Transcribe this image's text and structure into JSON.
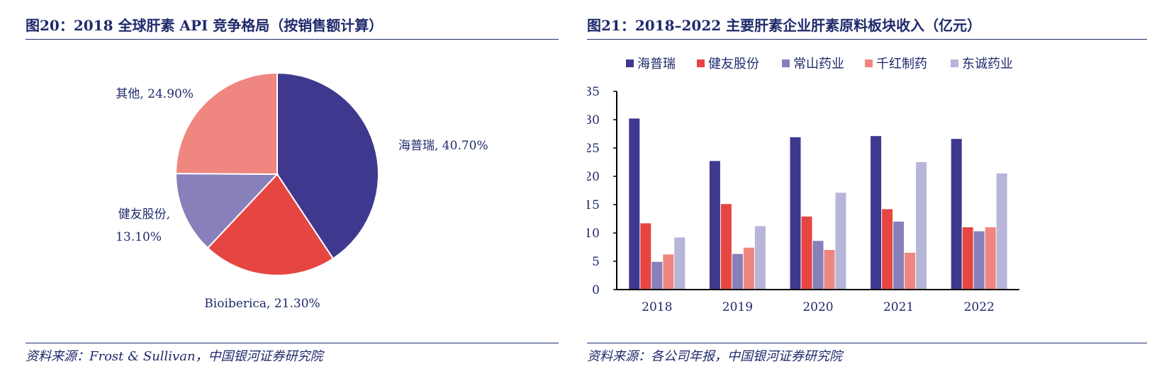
{
  "left": {
    "title": "图20：2018 全球肝素 API 竞争格局（按销售额计算）",
    "source": "资料来源：Frost & Sullivan，中国银河证券研究院"
  },
  "right": {
    "title": "图21：2018–2022 主要肝素企业肝素原料板块收入（亿元）",
    "source": "资料来源：各公司年报，中国银河证券研究院"
  },
  "chart_data": [
    {
      "type": "pie",
      "title": "2018 全球肝素 API 竞争格局（按销售额计算）",
      "slices": [
        {
          "name": "海普瑞",
          "value": 40.7,
          "label": "海普瑞, 40.70%",
          "color": "#3f388f"
        },
        {
          "name": "Bioiberica",
          "value": 21.3,
          "label": "Bioiberica, 21.30%",
          "color": "#e64641"
        },
        {
          "name": "健友股份",
          "value": 13.1,
          "label_line1": "健友股份,",
          "label_line2": "13.10%",
          "color": "#8780ba"
        },
        {
          "name": "其他",
          "value": 24.9,
          "label": "其他, 24.90%",
          "color": "#ef8680"
        }
      ]
    },
    {
      "type": "bar",
      "title": "2018–2022 主要肝素企业肝素原料板块收入（亿元）",
      "categories": [
        "2018",
        "2019",
        "2020",
        "2021",
        "2022"
      ],
      "ylim": [
        0,
        35
      ],
      "yticks": [
        "0",
        "5",
        "10",
        "15",
        "20",
        "25",
        "30",
        "35"
      ],
      "series": [
        {
          "name": "海普瑞",
          "color": "#3f388f",
          "values": [
            30.2,
            22.7,
            26.9,
            27.1,
            26.6
          ]
        },
        {
          "name": "健友股份",
          "color": "#e64641",
          "values": [
            11.7,
            15.1,
            12.9,
            14.2,
            11.0
          ]
        },
        {
          "name": "常山药业",
          "color": "#8780ba",
          "values": [
            4.9,
            6.3,
            8.6,
            12.0,
            10.3
          ]
        },
        {
          "name": "千红制药",
          "color": "#ef8680",
          "values": [
            6.2,
            7.4,
            7.0,
            6.5,
            11.0
          ]
        },
        {
          "name": "东诚药业",
          "color": "#b7b5d8",
          "values": [
            9.2,
            11.2,
            17.1,
            22.5,
            20.5
          ]
        }
      ]
    }
  ]
}
